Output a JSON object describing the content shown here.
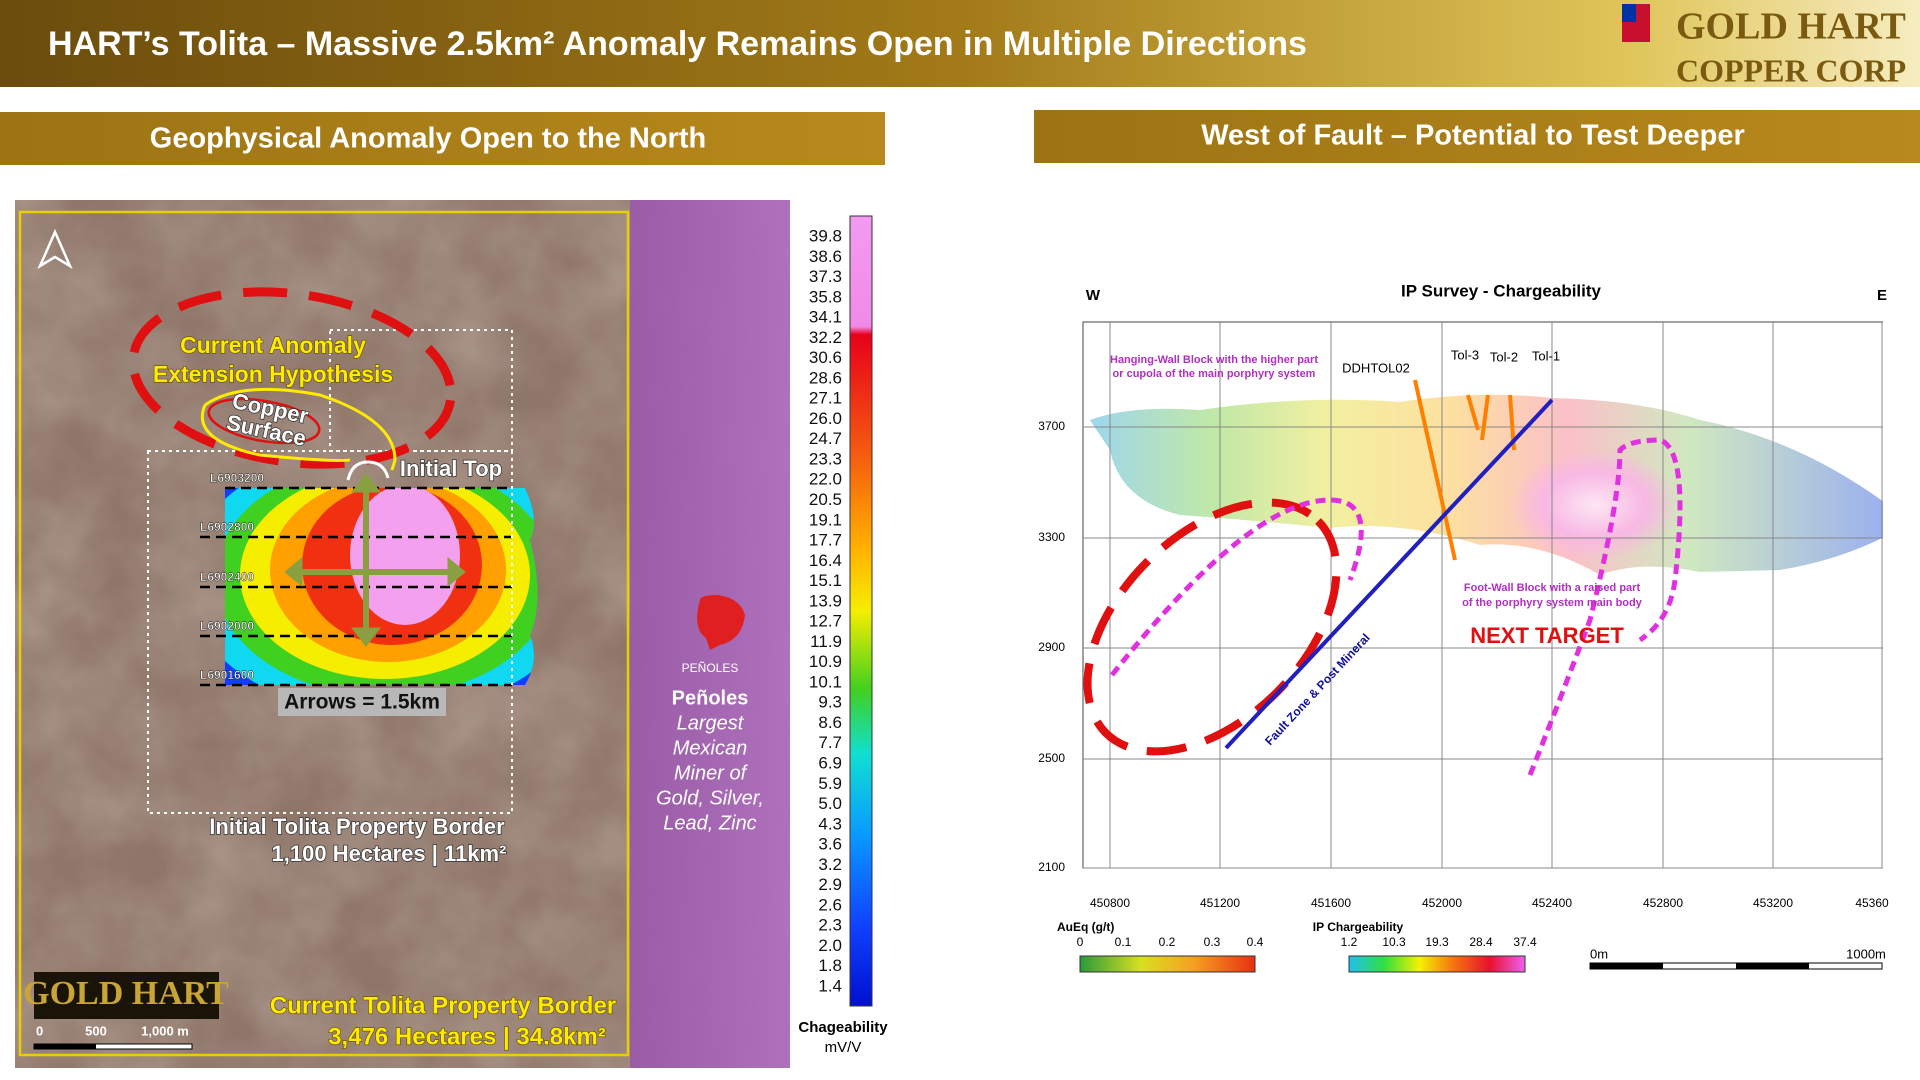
{
  "header": {
    "title": "HART’s Tolita – Massive 2.5km² Anomaly Remains Open in Multiple Directions",
    "logo": [
      "GOLD HART",
      "COPPER CORP"
    ]
  },
  "left": {
    "heading": "Geophysical Anomaly Open to the North",
    "map": {
      "hypothesis": [
        "Current Anomaly",
        "Extension Hypothesis"
      ],
      "copper_surface": [
        "Copper",
        "Surface"
      ],
      "initial_top": "Initial Top",
      "lines": [
        "L6903200",
        "L6902800",
        "L6902400",
        "L6902000",
        "L6901600"
      ],
      "arrows": "Arrows = 1.5km",
      "initial_border": [
        "Initial Tolita Property Border",
        "1,100 Hectares | 11km²"
      ],
      "logo": "GOLD HART",
      "scale": [
        "0",
        "500",
        "1,000 m"
      ],
      "current_border": [
        "Current Tolita Property Border",
        "3,476 Hectares | 34.8km²"
      ],
      "penoles": {
        "logo": "PEÑOLES",
        "name": "Peñoles",
        "text": [
          "Largest",
          "Mexican",
          "Miner of",
          "Gold, Silver,",
          "Lead, Zinc"
        ]
      }
    },
    "colorbar": {
      "ticks": [
        "39.8",
        "38.6",
        "37.3",
        "35.8",
        "34.1",
        "32.2",
        "30.6",
        "28.6",
        "27.1",
        "26.0",
        "24.7",
        "23.3",
        "22.0",
        "20.5",
        "19.1",
        "17.7",
        "16.4",
        "15.1",
        "13.9",
        "12.7",
        "11.9",
        "10.9",
        "10.1",
        "9.3",
        "8.6",
        "7.7",
        "6.9",
        "5.9",
        "5.0",
        "4.3",
        "3.6",
        "3.2",
        "2.9",
        "2.6",
        "2.3",
        "2.0",
        "1.8",
        "1.4"
      ],
      "title": "Chageability",
      "unit": "mV/V"
    }
  },
  "right": {
    "heading": "West of Fault – Potential to Test Deeper",
    "section": {
      "title": "IP Survey - Chargeability",
      "west": "W",
      "east": "E",
      "yticks": [
        "3700",
        "3300",
        "2900",
        "2500",
        "2100"
      ],
      "xticks": [
        "450800",
        "451200",
        "451600",
        "452000",
        "452400",
        "452800",
        "453200",
        "45360"
      ],
      "hanging_wall": [
        "Hanging-Wall Block with the higher part",
        "or cupola of the main porphyry system"
      ],
      "holes": [
        "DDHTOL02",
        "Tol-3",
        "Tol-2",
        "Tol-1"
      ],
      "fault": "Fault Zone & Post Mineral",
      "foot_wall": [
        "Foot-Wall Block with a raised part",
        "of the porphyry system main body"
      ],
      "next_target": "NEXT TARGET",
      "legend_au": {
        "title": "AuEq (g/t)",
        "ticks": [
          "0",
          "0.1",
          "0.2",
          "0.3",
          "0.4"
        ]
      },
      "legend_ip": {
        "title": "IP Chargeability",
        "ticks": [
          "1.2",
          "10.3",
          "19.3",
          "28.4",
          "37.4"
        ]
      },
      "scale": [
        "0m",
        "1000m"
      ]
    }
  }
}
